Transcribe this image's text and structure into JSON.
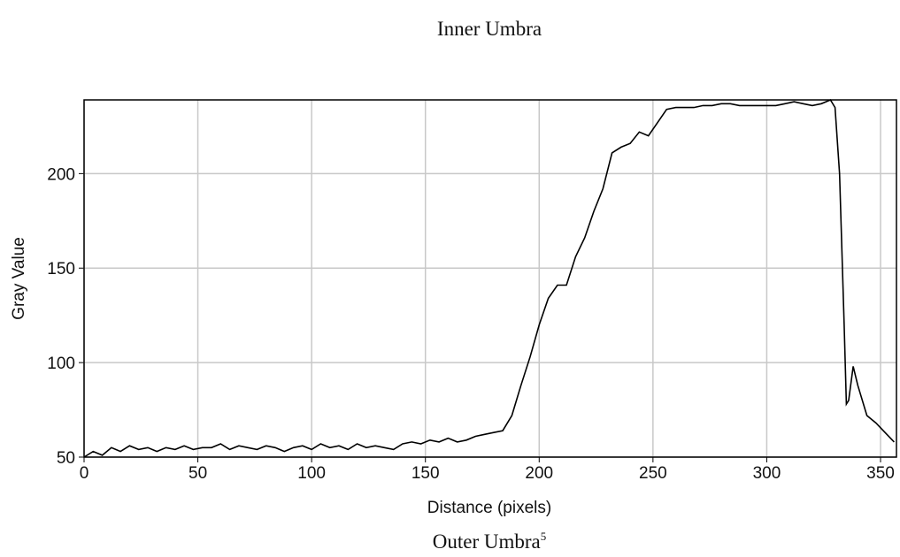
{
  "chart_data": {
    "type": "line",
    "title": "Inner Umbra",
    "caption": "Outer Umbra",
    "caption_superscript": "5",
    "x_label": "Distance (pixels)",
    "y_label": "Gray Value",
    "xlim": [
      0,
      357
    ],
    "ylim": [
      50,
      239
    ],
    "xticks": [
      0,
      50,
      100,
      150,
      200,
      250,
      300,
      350
    ],
    "yticks": [
      50,
      100,
      150,
      200
    ],
    "grid": true,
    "x": [
      0,
      4,
      8,
      12,
      16,
      20,
      24,
      28,
      32,
      36,
      40,
      44,
      48,
      52,
      56,
      60,
      64,
      68,
      72,
      76,
      80,
      84,
      88,
      92,
      96,
      100,
      104,
      108,
      112,
      116,
      120,
      124,
      128,
      132,
      136,
      140,
      144,
      148,
      152,
      156,
      160,
      164,
      168,
      172,
      176,
      180,
      184,
      188,
      192,
      196,
      200,
      204,
      208,
      212,
      216,
      220,
      224,
      228,
      232,
      236,
      240,
      244,
      248,
      252,
      256,
      260,
      264,
      268,
      272,
      276,
      280,
      284,
      288,
      292,
      296,
      300,
      304,
      308,
      312,
      316,
      320,
      324,
      328,
      330,
      332,
      334,
      335,
      336,
      338,
      340,
      344,
      348,
      352,
      356
    ],
    "series": [
      {
        "name": "Gray Value",
        "color": "#000000",
        "values": [
          50,
          53,
          51,
          55,
          53,
          56,
          54,
          55,
          53,
          55,
          54,
          56,
          54,
          55,
          55,
          57,
          54,
          56,
          55,
          54,
          56,
          55,
          53,
          55,
          56,
          54,
          57,
          55,
          56,
          54,
          57,
          55,
          56,
          55,
          54,
          57,
          58,
          57,
          59,
          58,
          60,
          58,
          59,
          61,
          62,
          63,
          64,
          72,
          88,
          103,
          120,
          134,
          141,
          141,
          156,
          166,
          180,
          192,
          211,
          214,
          216,
          222,
          220,
          227,
          234,
          235,
          235,
          235,
          236,
          236,
          237,
          237,
          236,
          236,
          236,
          236,
          236,
          237,
          238,
          237,
          236,
          237,
          239,
          235,
          200,
          120,
          78,
          80,
          98,
          88,
          72,
          68,
          63,
          58
        ]
      }
    ]
  }
}
